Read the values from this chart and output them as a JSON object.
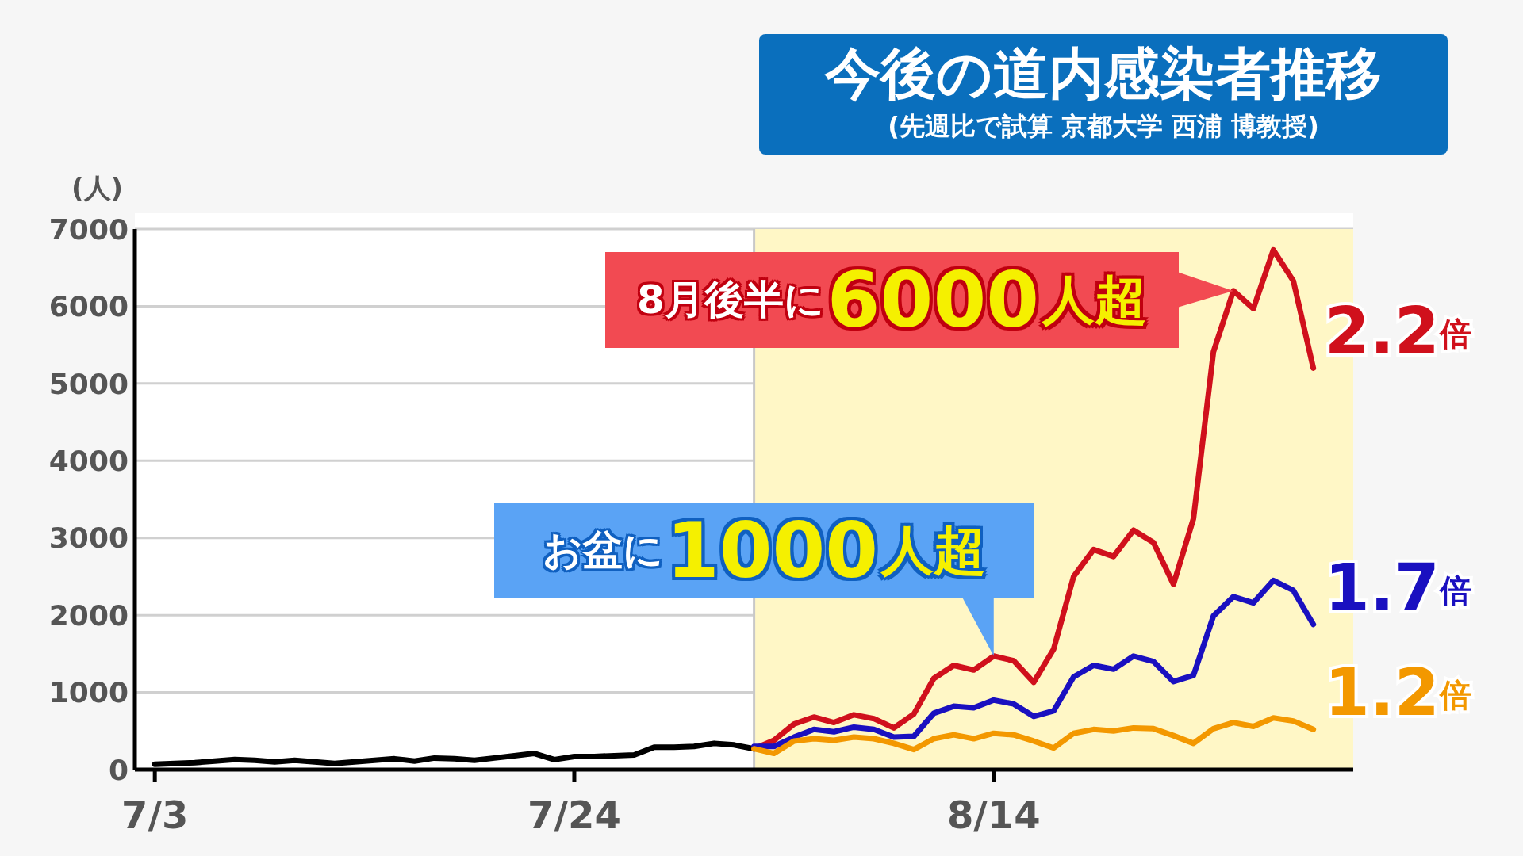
{
  "chart_data": {
    "type": "line",
    "title": "今後の道内感染者推移",
    "subtitle": "(先週比で試算 京都大学 西浦 博教授)",
    "ylabel": "(人)",
    "x": [
      "--07-03",
      "--07-04",
      "--07-05",
      "--07-06",
      "--07-07",
      "--07-08",
      "--07-09",
      "--07-10",
      "--07-11",
      "--07-12",
      "--07-13",
      "--07-14",
      "--07-15",
      "--07-16",
      "--07-17",
      "--07-18",
      "--07-19",
      "--07-20",
      "--07-21",
      "--07-22",
      "--07-23",
      "--07-24",
      "--07-25",
      "--07-26",
      "--07-27",
      "--07-28",
      "--07-29",
      "--07-30",
      "--07-31",
      "--08-01",
      "--08-02",
      "--08-03",
      "--08-04",
      "--08-05",
      "--08-06",
      "--08-07",
      "--08-08",
      "--08-09",
      "--08-10",
      "--08-11",
      "--08-12",
      "--08-13",
      "--08-14",
      "--08-15",
      "--08-16",
      "--08-17",
      "--08-18",
      "--08-19",
      "--08-20",
      "--08-21",
      "--08-22",
      "--08-23",
      "--08-24",
      "--08-25",
      "--08-26",
      "--08-27",
      "--08-28",
      "--08-29",
      "--08-30"
    ],
    "series": [
      {
        "color": "#000000",
        "values": [
          70,
          80,
          90,
          110,
          130,
          120,
          100,
          120,
          100,
          80,
          100,
          120,
          140,
          110,
          150,
          140,
          120,
          150,
          180,
          210,
          130,
          170,
          170,
          180,
          190,
          290,
          290,
          300,
          340,
          320,
          270,
          null,
          null,
          null,
          null,
          null,
          null,
          null,
          null,
          null,
          null,
          null,
          null,
          null,
          null,
          null,
          null,
          null,
          null,
          null,
          null,
          null,
          null,
          null,
          null,
          null,
          null,
          null,
          null
        ]
      },
      {
        "name": "2.2倍",
        "color": "#d0101c",
        "values": [
          null,
          null,
          null,
          null,
          null,
          null,
          null,
          null,
          null,
          null,
          null,
          null,
          null,
          null,
          null,
          null,
          null,
          null,
          null,
          null,
          null,
          null,
          null,
          null,
          null,
          null,
          null,
          null,
          null,
          null,
          270,
          380,
          590,
          680,
          610,
          710,
          660,
          540,
          720,
          1180,
          1350,
          1290,
          1470,
          1410,
          1130,
          1560,
          2500,
          2850,
          2760,
          3100,
          2940,
          2400,
          3250,
          5410,
          6200,
          5970,
          6730,
          6330,
          5200
        ]
      },
      {
        "name": "1.7倍",
        "color": "#1a10c0",
        "values": [
          null,
          null,
          null,
          null,
          null,
          null,
          null,
          null,
          null,
          null,
          null,
          null,
          null,
          null,
          null,
          null,
          null,
          null,
          null,
          null,
          null,
          null,
          null,
          null,
          null,
          null,
          null,
          null,
          null,
          null,
          300,
          300,
          420,
          520,
          490,
          550,
          520,
          420,
          430,
          730,
          820,
          800,
          900,
          850,
          690,
          760,
          1200,
          1350,
          1300,
          1470,
          1400,
          1140,
          1220,
          1990,
          2240,
          2160,
          2450,
          2320,
          1880
        ]
      },
      {
        "name": "1.2倍",
        "color": "#f39800",
        "values": [
          null,
          null,
          null,
          null,
          null,
          null,
          null,
          null,
          null,
          null,
          null,
          null,
          null,
          null,
          null,
          null,
          null,
          null,
          null,
          null,
          null,
          null,
          null,
          null,
          null,
          null,
          null,
          null,
          null,
          null,
          270,
          210,
          370,
          400,
          380,
          420,
          400,
          340,
          260,
          400,
          450,
          400,
          470,
          450,
          370,
          280,
          470,
          520,
          500,
          540,
          530,
          440,
          340,
          530,
          610,
          560,
          670,
          630,
          520
        ]
      }
    ],
    "xlim": [
      "--07-02",
      "--09-01"
    ],
    "xticks": [
      {
        "value": "--07-03",
        "label": "7/3"
      },
      {
        "value": "--07-24",
        "label": "7/24"
      },
      {
        "value": "--08-14",
        "label": "8/14"
      }
    ],
    "ylim": [
      0,
      7000
    ],
    "yticks": [
      0,
      1000,
      2000,
      3000,
      4000,
      5000,
      6000,
      7000
    ],
    "grid": "y",
    "ref_lines": [
      {
        "axis": "x",
        "value": "--08-02",
        "color": "#c8c8c8"
      }
    ],
    "bands": [
      {
        "axis": "x",
        "from": "--08-02",
        "to": "--09-01",
        "color": "#fff7c6"
      }
    ],
    "annotations": [
      {
        "text": "8月後半に6000人超",
        "x": "--08-26",
        "y": 6200
      },
      {
        "text": "お盆に1000人超",
        "x": "--08-14",
        "y": 1470
      }
    ]
  }
}
